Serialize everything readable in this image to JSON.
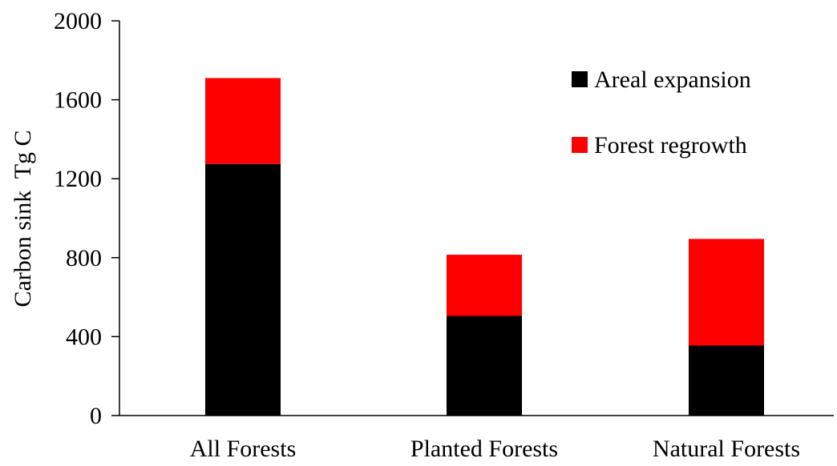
{
  "chart_data": {
    "type": "bar",
    "stacked": true,
    "categories": [
      "All Forests",
      "Planted Forests",
      "Natural Forests"
    ],
    "series": [
      {
        "name": "Areal expansion",
        "color": "#000000",
        "values": [
          1275,
          505,
          355
        ]
      },
      {
        "name": "Forest regrowth",
        "color": "#ff0000",
        "values": [
          435,
          310,
          540
        ]
      }
    ],
    "title": "",
    "xlabel": "",
    "ylabel": "Carbon sink  Tg C",
    "ylim": [
      0,
      2000
    ],
    "yticks": [
      0,
      400,
      800,
      1200,
      1600,
      2000
    ],
    "grid": false,
    "legend": "top-right"
  }
}
